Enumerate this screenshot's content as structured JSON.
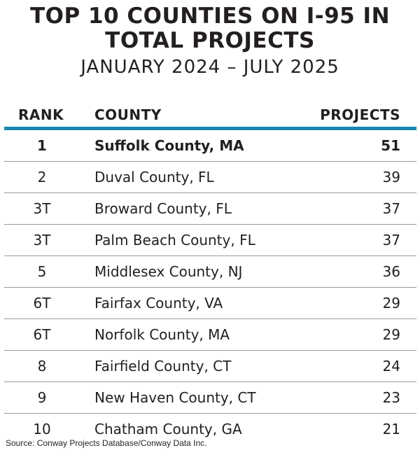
{
  "title_line1": "TOP 10 COUNTIES ON I-95 IN",
  "title_line2": "TOTAL PROJECTS",
  "subtitle": "JANUARY 2024 – JULY 2025",
  "chart_data": {
    "type": "table",
    "columns": [
      "RANK",
      "COUNTY",
      "PROJECTS"
    ],
    "rows": [
      {
        "rank": "1",
        "county": "Suffolk County, MA",
        "projects": 51
      },
      {
        "rank": "2",
        "county": "Duval County, FL",
        "projects": 39
      },
      {
        "rank": "3T",
        "county": "Broward County, FL",
        "projects": 37
      },
      {
        "rank": "3T",
        "county": "Palm Beach County, FL",
        "projects": 37
      },
      {
        "rank": "5",
        "county": "Middlesex County, NJ",
        "projects": 36
      },
      {
        "rank": "6T",
        "county": "Fairfax County, VA",
        "projects": 29
      },
      {
        "rank": "6T",
        "county": "Norfolk County, MA",
        "projects": 29
      },
      {
        "rank": "8",
        "county": "Fairfield County, CT",
        "projects": 24
      },
      {
        "rank": "9",
        "county": "New Haven County, CT",
        "projects": 23
      },
      {
        "rank": "10",
        "county": "Chatham County, GA",
        "projects": 21
      }
    ]
  },
  "source": "Source: Conway Projects Database/Conway Data Inc.",
  "colors": {
    "header_rule": "#1a86b0",
    "row_divider": "#9a9a9a",
    "text": "#231f20"
  }
}
